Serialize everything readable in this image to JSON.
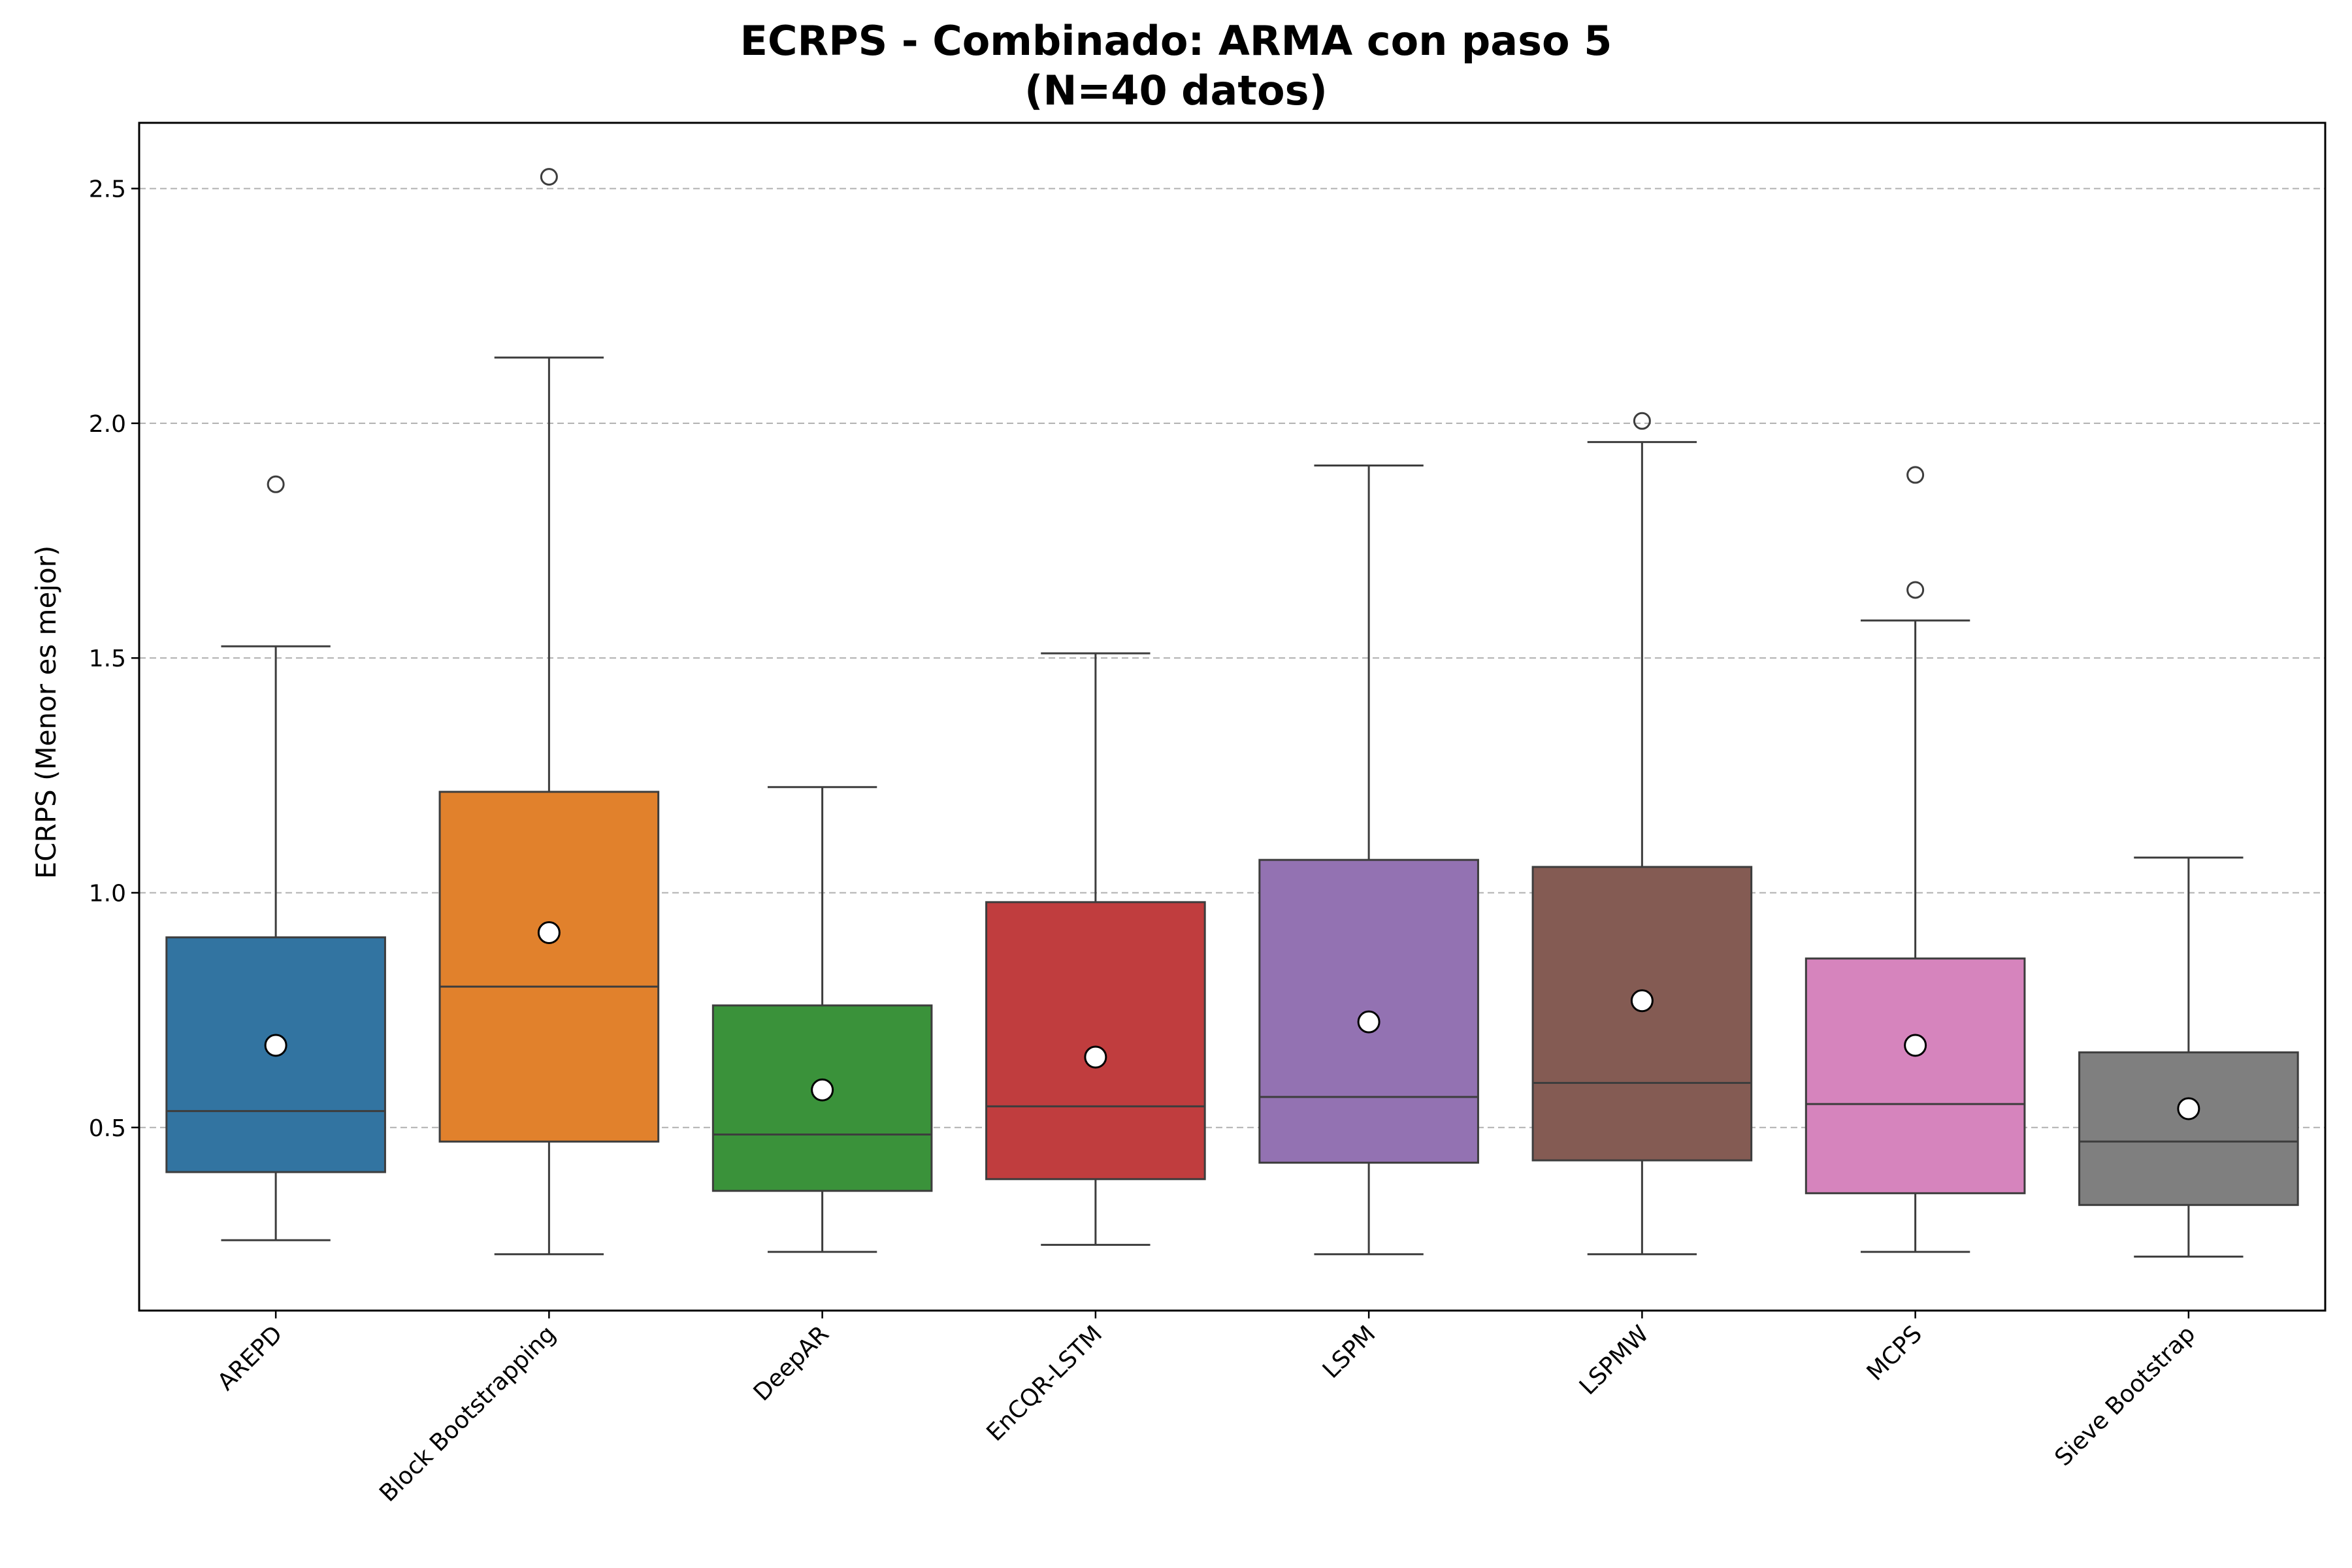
{
  "chart_data": {
    "type": "box",
    "title": "ECRPS - Combinado: ARMA con paso 5",
    "subtitle": "(N=40 datos)",
    "xlabel": "",
    "ylabel": "ECRPS (Menor es mejor)",
    "ylim": [
      0.11,
      2.64
    ],
    "yticks": [
      "0.5",
      "1.0",
      "1.5",
      "2.0",
      "2.5"
    ],
    "ytick_values": [
      0.5,
      1.0,
      1.5,
      2.0,
      2.5
    ],
    "grid": "horizontal dashed",
    "legend": "none",
    "categories": [
      "AREPD",
      "Block Bootstrapping",
      "DeepAR",
      "EnCQR-LSTM",
      "LSPM",
      "LSPMW",
      "MCPS",
      "Sieve Bootstrap"
    ],
    "series": [
      {
        "category": "AREPD",
        "color": "#3274a1",
        "whisker_low": 0.26,
        "q1": 0.405,
        "median": 0.535,
        "q3": 0.905,
        "whisker_high": 1.525,
        "mean": 0.675,
        "outliers": [
          1.87
        ]
      },
      {
        "category": "Block Bootstrapping",
        "color": "#e1812c",
        "whisker_low": 0.23,
        "q1": 0.47,
        "median": 0.8,
        "q3": 1.215,
        "whisker_high": 2.14,
        "mean": 0.915,
        "outliers": [
          2.525
        ]
      },
      {
        "category": "DeepAR",
        "color": "#3a923a",
        "whisker_low": 0.235,
        "q1": 0.365,
        "median": 0.485,
        "q3": 0.76,
        "whisker_high": 1.225,
        "mean": 0.58,
        "outliers": []
      },
      {
        "category": "EnCQR-LSTM",
        "color": "#c03d3e",
        "whisker_low": 0.25,
        "q1": 0.39,
        "median": 0.545,
        "q3": 0.98,
        "whisker_high": 1.51,
        "mean": 0.65,
        "outliers": []
      },
      {
        "category": "LSPM",
        "color": "#9372b2",
        "whisker_low": 0.23,
        "q1": 0.425,
        "median": 0.565,
        "q3": 1.07,
        "whisker_high": 1.91,
        "mean": 0.725,
        "outliers": []
      },
      {
        "category": "LSPMW",
        "color": "#845b53",
        "whisker_low": 0.23,
        "q1": 0.43,
        "median": 0.595,
        "q3": 1.055,
        "whisker_high": 1.96,
        "mean": 0.77,
        "outliers": [
          2.005
        ]
      },
      {
        "category": "MCPS",
        "color": "#d684bd",
        "whisker_low": 0.235,
        "q1": 0.36,
        "median": 0.55,
        "q3": 0.86,
        "whisker_high": 1.58,
        "mean": 0.675,
        "outliers": [
          1.89,
          1.645
        ]
      },
      {
        "category": "Sieve Bootstrap",
        "color": "#7f7f7f",
        "whisker_low": 0.225,
        "q1": 0.335,
        "median": 0.47,
        "q3": 0.66,
        "whisker_high": 1.075,
        "mean": 0.54,
        "outliers": []
      }
    ]
  }
}
